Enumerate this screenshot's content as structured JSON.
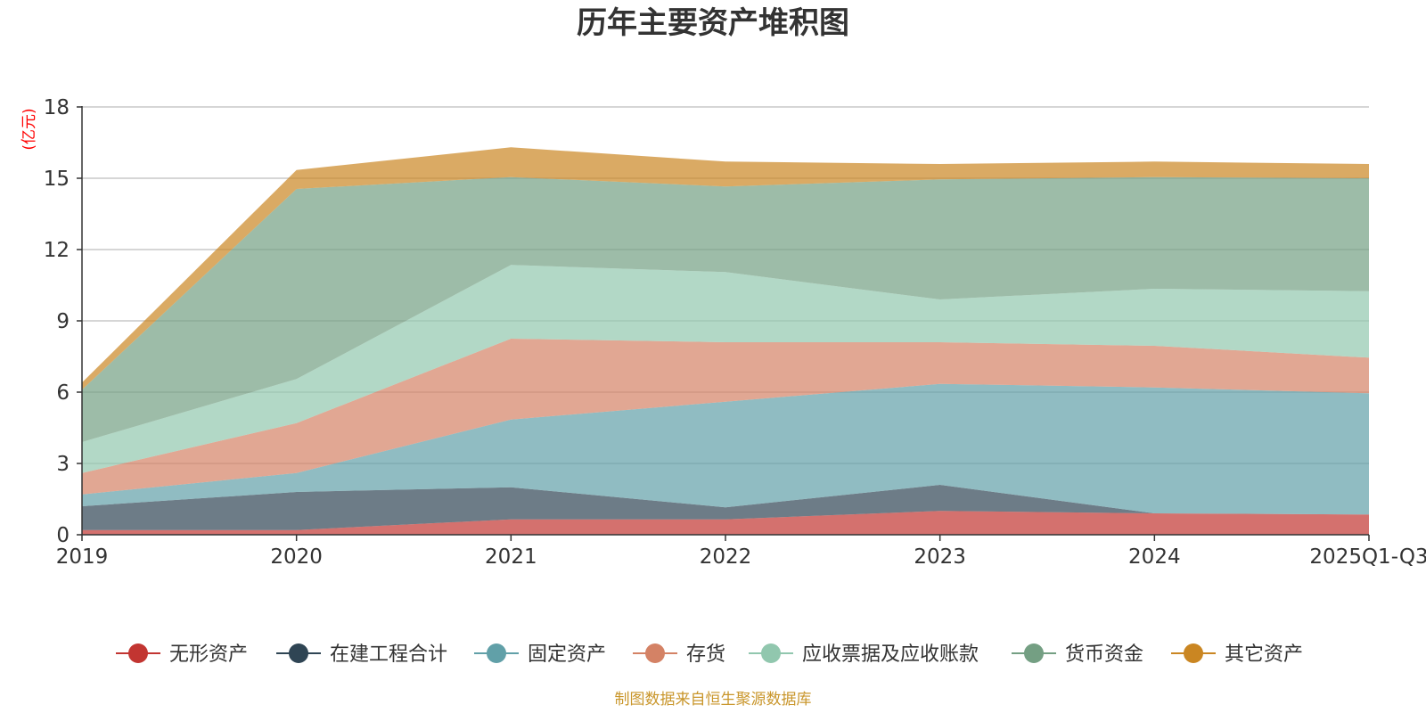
{
  "chart_data": {
    "type": "area",
    "stacked": true,
    "title": "历年主要资产堆积图",
    "ylabel": "(亿元)",
    "xlabel": "",
    "categories": [
      "2019",
      "2020",
      "2021",
      "2022",
      "2023",
      "2024",
      "2025Q1-Q3"
    ],
    "ylim": [
      0,
      18
    ],
    "yticks": [
      0,
      3,
      6,
      9,
      12,
      15,
      18
    ],
    "grid": true,
    "legend_position": "bottom",
    "series": [
      {
        "name": "无形资产",
        "color": "#c23531",
        "values": [
          0.2,
          0.2,
          0.65,
          0.65,
          1.0,
          0.9,
          0.85
        ]
      },
      {
        "name": "在建工程合计",
        "color": "#2f4554",
        "values": [
          1.0,
          1.6,
          1.35,
          0.5,
          1.1,
          0.0,
          0.0
        ]
      },
      {
        "name": "固定资产",
        "color": "#61a0a8",
        "values": [
          0.5,
          0.8,
          2.85,
          4.45,
          4.25,
          5.3,
          5.1
        ]
      },
      {
        "name": "存货",
        "color": "#d48265",
        "values": [
          0.9,
          2.1,
          3.4,
          2.5,
          1.75,
          1.75,
          1.5
        ]
      },
      {
        "name": "应收票据及应收账款",
        "color": "#91c7ae",
        "values": [
          1.3,
          1.85,
          3.1,
          2.95,
          1.8,
          2.4,
          2.8
        ]
      },
      {
        "name": "货币资金",
        "color": "#749f83",
        "values": [
          2.2,
          8.0,
          3.7,
          3.6,
          5.05,
          4.7,
          4.75
        ]
      },
      {
        "name": "其它资产",
        "color": "#ca8622",
        "values": [
          0.3,
          0.8,
          1.25,
          1.05,
          0.65,
          0.65,
          0.6
        ]
      }
    ]
  },
  "source_note": "制图数据来自恒生聚源数据库"
}
